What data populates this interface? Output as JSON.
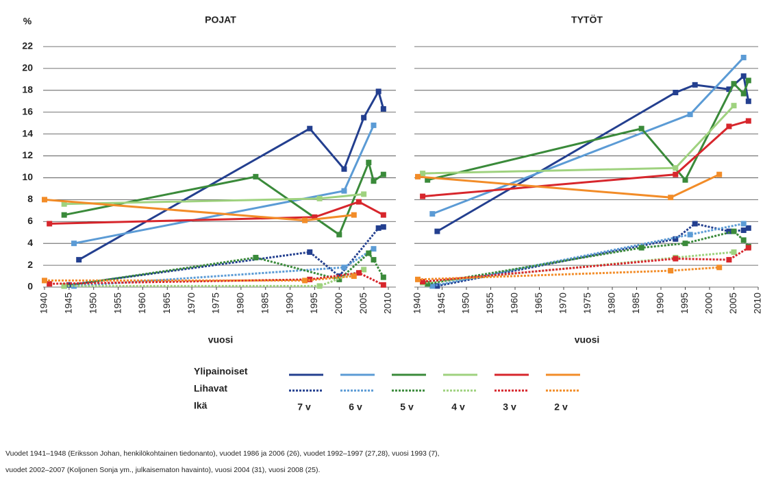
{
  "y_label": "%",
  "legend": {
    "rows": [
      "Ylipainoiset",
      "Lihavat"
    ],
    "title": "Ikä"
  },
  "notes": [
    "Vuodet 1941–1948 (Eriksson Johan, henkilökohtainen tiedonanto), vuodet 1986 ja 2006 (26), vuodet 1992–1997 (27,28), vuosi 1993 (7),",
    "vuodet 2002–2007 (Koljonen Sonja ym., julkaisematon havainto), vuosi 2004 (31), vuosi 2008 (25)."
  ],
  "chart_data": [
    {
      "type": "line",
      "title": "POJAT",
      "xlabel": "vuosi",
      "xlim": [
        1940,
        2010
      ],
      "xticks": [
        1940,
        1945,
        1950,
        1955,
        1960,
        1965,
        1970,
        1975,
        1980,
        1985,
        1990,
        1995,
        2000,
        2005,
        2010
      ],
      "ylim": [
        0,
        22
      ],
      "yticks": [
        0,
        2,
        4,
        6,
        8,
        10,
        12,
        14,
        16,
        18,
        20,
        22
      ],
      "grid": true,
      "series": [
        {
          "name": "7 v",
          "color": "#233f8f",
          "dash": "solid",
          "x": [
            1947,
            1994,
            2001,
            2005,
            2008,
            2009
          ],
          "values": [
            2.5,
            14.5,
            10.8,
            15.5,
            17.9,
            16.3
          ]
        },
        {
          "name": "6 v",
          "color": "#5b9bd5",
          "dash": "solid",
          "x": [
            1946,
            2001,
            2007
          ],
          "values": [
            4.0,
            8.8,
            14.8
          ]
        },
        {
          "name": "5 v",
          "color": "#3a8a3a",
          "dash": "solid",
          "x": [
            1944,
            1983,
            2000,
            2006,
            2007,
            2009
          ],
          "values": [
            6.6,
            10.1,
            4.8,
            11.4,
            9.7,
            10.3
          ]
        },
        {
          "name": "4 v",
          "color": "#9fd27f",
          "dash": "solid",
          "x": [
            1944,
            1996,
            2005
          ],
          "values": [
            7.6,
            8.1,
            8.5
          ]
        },
        {
          "name": "3 v",
          "color": "#d7262c",
          "dash": "solid",
          "x": [
            1941,
            1995,
            2004,
            2009
          ],
          "values": [
            5.8,
            6.4,
            7.8,
            6.6
          ]
        },
        {
          "name": "2 v",
          "color": "#f28c28",
          "dash": "solid",
          "x": [
            1940,
            1993,
            2003
          ],
          "values": [
            8.0,
            6.1,
            6.6
          ]
        },
        {
          "color": "#233f8f",
          "dash": "dotted",
          "x": [
            1945,
            1994,
            2000,
            2008,
            2009
          ],
          "values": [
            0.2,
            3.2,
            1.0,
            5.4,
            5.5
          ]
        },
        {
          "color": "#5b9bd5",
          "dash": "dotted",
          "x": [
            1946,
            2001,
            2007
          ],
          "values": [
            0.1,
            1.8,
            3.5
          ]
        },
        {
          "color": "#3a8a3a",
          "dash": "dotted",
          "x": [
            1944,
            1983,
            2000,
            2006,
            2007,
            2009
          ],
          "values": [
            0.1,
            2.7,
            0.7,
            3.1,
            2.5,
            0.9
          ]
        },
        {
          "color": "#9fd27f",
          "dash": "dotted",
          "x": [
            1944,
            1996,
            2005
          ],
          "values": [
            0.1,
            0.1,
            1.6
          ]
        },
        {
          "color": "#d7262c",
          "dash": "dotted",
          "x": [
            1941,
            1994,
            2004,
            2009
          ],
          "values": [
            0.3,
            0.7,
            1.3,
            0.2
          ]
        },
        {
          "color": "#f28c28",
          "dash": "dotted",
          "x": [
            1940,
            1993,
            2003
          ],
          "values": [
            0.6,
            0.6,
            1.0
          ]
        }
      ]
    },
    {
      "type": "line",
      "title": "TYTÖT",
      "xlabel": "vuosi",
      "xlim": [
        1940,
        2010
      ],
      "xticks": [
        1940,
        1945,
        1950,
        1955,
        1960,
        1965,
        1970,
        1975,
        1980,
        1985,
        1990,
        1995,
        2000,
        2005,
        2010
      ],
      "ylim": [
        0,
        22
      ],
      "yticks": [
        0,
        2,
        4,
        6,
        8,
        10,
        12,
        14,
        16,
        18,
        20,
        22
      ],
      "grid": true,
      "series": [
        {
          "color": "#233f8f",
          "dash": "solid",
          "x": [
            1944,
            1993,
            1997,
            2004,
            2007,
            2008
          ],
          "values": [
            5.1,
            17.8,
            18.5,
            18.1,
            19.3,
            17.0
          ]
        },
        {
          "color": "#5b9bd5",
          "dash": "solid",
          "x": [
            1943,
            1996,
            2007
          ],
          "values": [
            6.7,
            15.8,
            21.0
          ]
        },
        {
          "color": "#3a8a3a",
          "dash": "solid",
          "x": [
            1942,
            1986,
            1995,
            2005,
            2007,
            2008
          ],
          "values": [
            9.8,
            14.5,
            9.8,
            18.6,
            17.7,
            18.9
          ]
        },
        {
          "color": "#9fd27f",
          "dash": "solid",
          "x": [
            1941,
            1993,
            2005
          ],
          "values": [
            10.4,
            10.9,
            16.6
          ]
        },
        {
          "color": "#d7262c",
          "dash": "solid",
          "x": [
            1941,
            1993,
            2004,
            2008
          ],
          "values": [
            8.3,
            10.3,
            14.7,
            15.2
          ]
        },
        {
          "color": "#f28c28",
          "dash": "solid",
          "x": [
            1940,
            1992,
            2002
          ],
          "values": [
            10.1,
            8.2,
            10.3
          ]
        },
        {
          "color": "#233f8f",
          "dash": "dotted",
          "x": [
            1944,
            1993,
            1997,
            2004,
            2007,
            2008
          ],
          "values": [
            0.1,
            4.4,
            5.8,
            5.1,
            5.2,
            5.4
          ]
        },
        {
          "color": "#5b9bd5",
          "dash": "dotted",
          "x": [
            1943,
            1996,
            2007
          ],
          "values": [
            0.1,
            4.8,
            5.8
          ]
        },
        {
          "color": "#3a8a3a",
          "dash": "dotted",
          "x": [
            1942,
            1986,
            1995,
            2005,
            2007,
            2008
          ],
          "values": [
            0.3,
            3.6,
            4.0,
            5.1,
            4.3,
            3.7
          ]
        },
        {
          "color": "#9fd27f",
          "dash": "dotted",
          "x": [
            1941,
            1993,
            2005
          ],
          "values": [
            0.4,
            2.7,
            3.2
          ]
        },
        {
          "color": "#d7262c",
          "dash": "dotted",
          "x": [
            1941,
            1993,
            2004,
            2008
          ],
          "values": [
            0.5,
            2.6,
            2.5,
            3.6
          ]
        },
        {
          "color": "#f28c28",
          "dash": "dotted",
          "x": [
            1940,
            1992,
            2002
          ],
          "values": [
            0.7,
            1.5,
            1.8
          ]
        }
      ]
    }
  ]
}
